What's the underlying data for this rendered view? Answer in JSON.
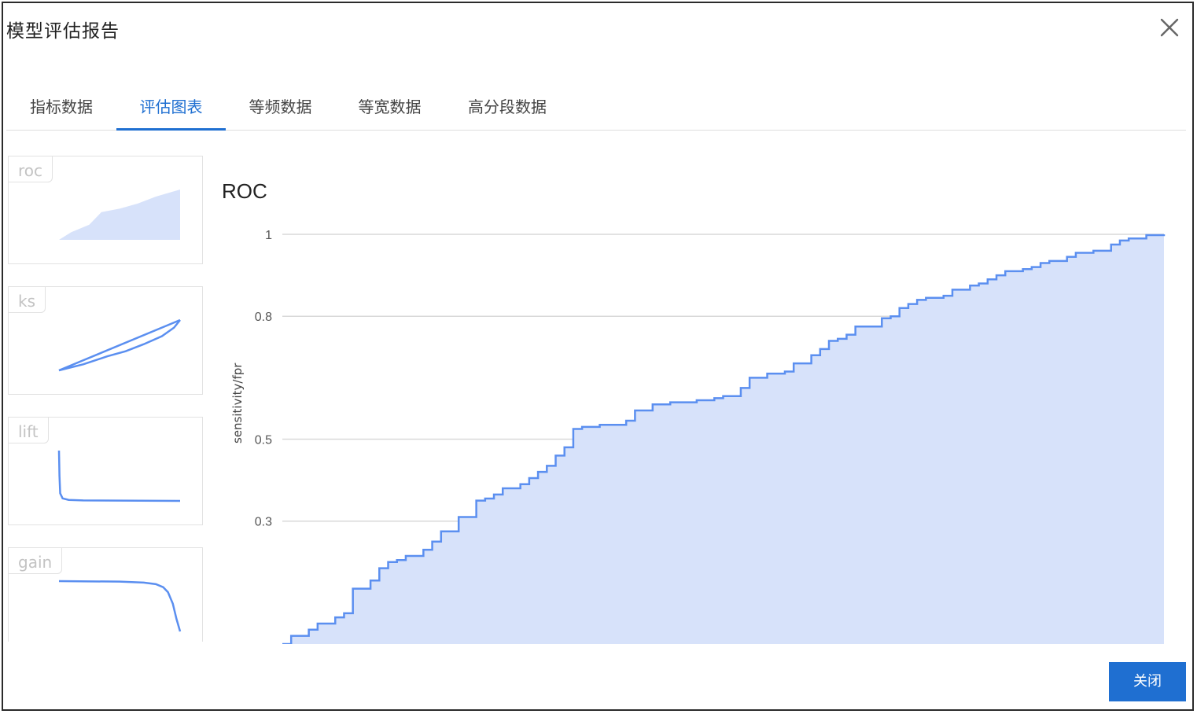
{
  "dialog": {
    "title": "模型评估报告",
    "close_icon": "close-icon",
    "ok_label": "关闭"
  },
  "tabs": [
    {
      "label": "指标数据",
      "active": false
    },
    {
      "label": "评估图表",
      "active": true
    },
    {
      "label": "等频数据",
      "active": false
    },
    {
      "label": "等宽数据",
      "active": false
    },
    {
      "label": "高分段数据",
      "active": false
    }
  ],
  "sidebar": {
    "thumbs": [
      {
        "label": "roc"
      },
      {
        "label": "ks"
      },
      {
        "label": "lift"
      },
      {
        "label": "gain"
      }
    ]
  },
  "colors": {
    "accent": "#1f6fd1",
    "line": "#5b8ff0",
    "fill": "#d7e2fa",
    "grid": "#d9d9d9"
  },
  "chart_data": {
    "type": "area",
    "title": "ROC",
    "ylabel": "sensitivity/fpr",
    "xlabel": "",
    "ylim": [
      0.0,
      1.0
    ],
    "ytick_labels": [
      "1",
      "0.8",
      "0.5",
      "0.3"
    ],
    "ytick_values": [
      1.0,
      0.8,
      0.5,
      0.3
    ],
    "grid": true,
    "step": true,
    "x": [
      0.0,
      0.01,
      0.03,
      0.04,
      0.06,
      0.07,
      0.08,
      0.1,
      0.11,
      0.12,
      0.13,
      0.14,
      0.16,
      0.17,
      0.18,
      0.2,
      0.22,
      0.23,
      0.24,
      0.25,
      0.27,
      0.28,
      0.29,
      0.3,
      0.31,
      0.32,
      0.33,
      0.34,
      0.36,
      0.39,
      0.4,
      0.42,
      0.44,
      0.47,
      0.49,
      0.5,
      0.52,
      0.53,
      0.55,
      0.57,
      0.58,
      0.6,
      0.61,
      0.62,
      0.63,
      0.64,
      0.65,
      0.68,
      0.69,
      0.7,
      0.71,
      0.72,
      0.73,
      0.75,
      0.76,
      0.78,
      0.79,
      0.8,
      0.81,
      0.82,
      0.84,
      0.85,
      0.86,
      0.87,
      0.89,
      0.9,
      0.92,
      0.94,
      0.95,
      0.96,
      0.98,
      1.0
    ],
    "y": [
      0.0,
      0.02,
      0.035,
      0.05,
      0.065,
      0.075,
      0.135,
      0.155,
      0.185,
      0.2,
      0.205,
      0.215,
      0.23,
      0.25,
      0.275,
      0.31,
      0.35,
      0.355,
      0.365,
      0.38,
      0.39,
      0.405,
      0.42,
      0.435,
      0.46,
      0.48,
      0.525,
      0.53,
      0.535,
      0.545,
      0.57,
      0.585,
      0.59,
      0.595,
      0.6,
      0.605,
      0.625,
      0.65,
      0.66,
      0.665,
      0.685,
      0.705,
      0.72,
      0.74,
      0.745,
      0.755,
      0.775,
      0.795,
      0.8,
      0.82,
      0.83,
      0.84,
      0.845,
      0.85,
      0.865,
      0.875,
      0.88,
      0.89,
      0.9,
      0.91,
      0.915,
      0.92,
      0.93,
      0.935,
      0.945,
      0.955,
      0.96,
      0.975,
      0.985,
      0.99,
      0.998,
      1.0
    ]
  },
  "thumb_data": {
    "roc": {
      "x": [
        0.0,
        0.1,
        0.25,
        0.35,
        0.5,
        0.65,
        0.8,
        0.9,
        1.0
      ],
      "y": [
        0.0,
        0.15,
        0.3,
        0.55,
        0.62,
        0.72,
        0.86,
        0.93,
        1.0
      ]
    },
    "ks": {
      "a": {
        "x": [
          0.0,
          1.0
        ],
        "y": [
          0.0,
          1.0
        ]
      },
      "b": {
        "x": [
          0.0,
          0.2,
          0.4,
          0.55,
          0.7,
          0.85,
          0.95,
          1.0
        ],
        "y": [
          0.0,
          0.12,
          0.28,
          0.38,
          0.52,
          0.68,
          0.85,
          1.0
        ]
      }
    },
    "lift": {
      "x": [
        0.0,
        0.004,
        0.01,
        0.03,
        0.08,
        0.2,
        0.5,
        1.0
      ],
      "y": [
        1.0,
        0.5,
        0.15,
        0.05,
        0.02,
        0.01,
        0.005,
        0.0
      ]
    },
    "gain": {
      "x": [
        0.0,
        0.5,
        0.7,
        0.8,
        0.86,
        0.9,
        0.94,
        0.97,
        1.0
      ],
      "y": [
        1.0,
        0.99,
        0.97,
        0.94,
        0.88,
        0.78,
        0.55,
        0.25,
        0.0
      ]
    }
  }
}
